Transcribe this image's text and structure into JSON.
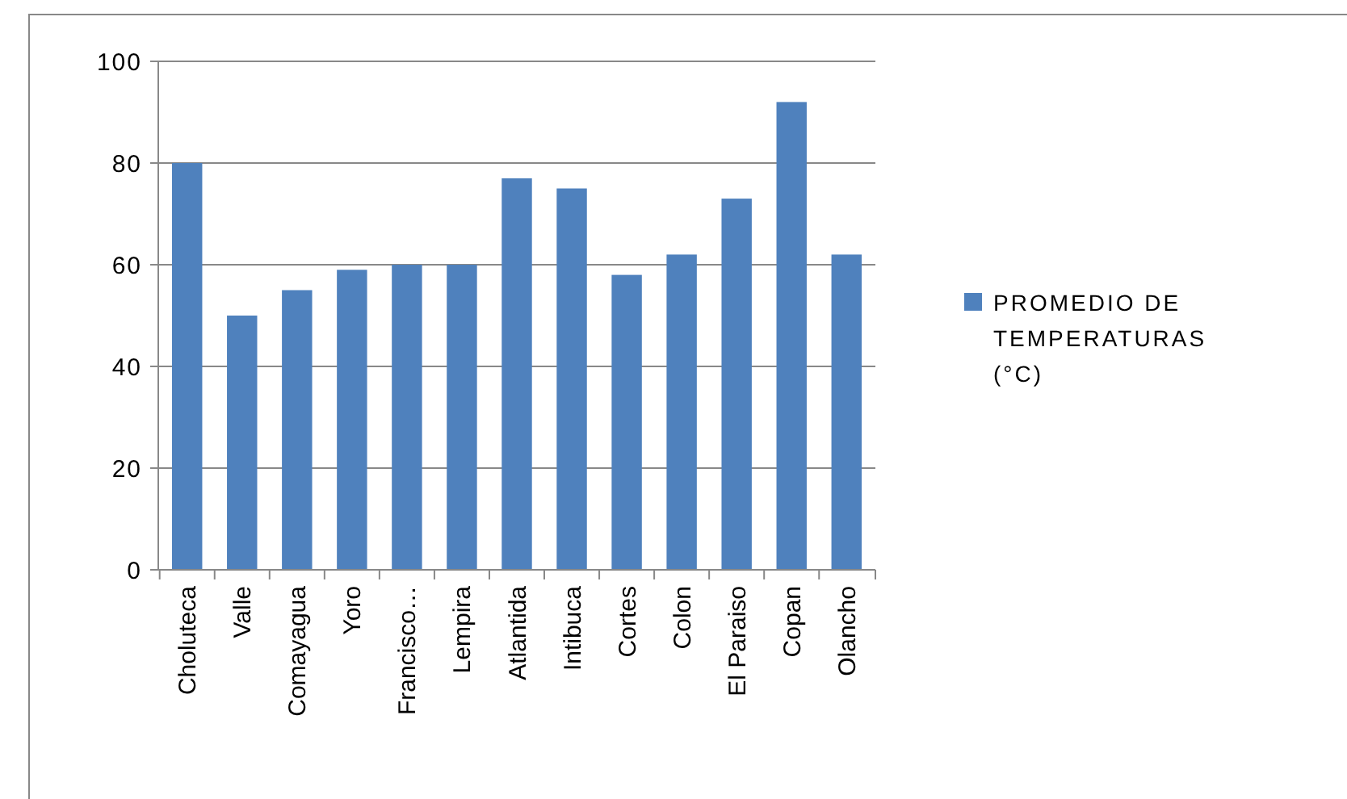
{
  "chart_data": {
    "type": "bar",
    "categories": [
      "Choluteca",
      "Valle",
      "Comayagua",
      "Yoro",
      "Francisco…",
      "Lempira",
      "Atlantida",
      "Intibuca",
      "Cortes",
      "Colon",
      "El Paraiso",
      "Copan",
      "Olancho"
    ],
    "series": [
      {
        "name": "PROMEDIO DE TEMPERATURAS (°C)",
        "color": "#4f81bd",
        "values": [
          80,
          50,
          55,
          59,
          60,
          60,
          77,
          75,
          58,
          62,
          73,
          92,
          62
        ]
      }
    ],
    "ylim": [
      0,
      100
    ],
    "yticks": [
      0,
      20,
      40,
      60,
      80,
      100
    ],
    "grid": "y",
    "legend": "right"
  }
}
